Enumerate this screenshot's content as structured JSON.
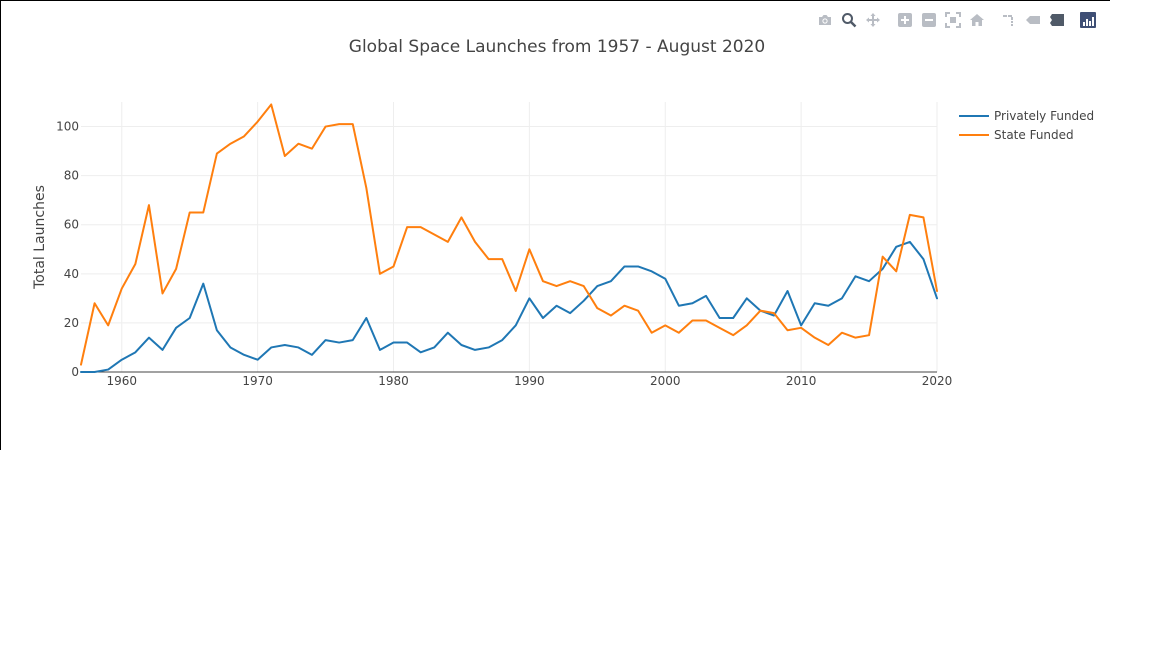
{
  "modebar": {
    "icons": [
      "camera-icon",
      "zoom-icon",
      "pan-icon",
      "zoom-in-icon",
      "zoom-out-icon",
      "autoscale-icon",
      "home-icon",
      "spike-lines-icon",
      "hover-closest-icon",
      "hover-compare-icon",
      "plotly-logo-icon"
    ]
  },
  "chart_data": {
    "type": "line",
    "title": "Global Space Launches from 1957 - August 2020",
    "xlabel": "",
    "ylabel": "Total Launches",
    "xlim": [
      1957,
      2020
    ],
    "ylim": [
      0,
      110
    ],
    "x_ticks": [
      1960,
      1970,
      1980,
      1990,
      2000,
      2010,
      2020
    ],
    "y_ticks": [
      0,
      20,
      40,
      60,
      80,
      100
    ],
    "grid": true,
    "legend_position": "top-right",
    "x": [
      1957,
      1958,
      1959,
      1960,
      1961,
      1962,
      1963,
      1964,
      1965,
      1966,
      1967,
      1968,
      1969,
      1970,
      1971,
      1972,
      1973,
      1974,
      1975,
      1976,
      1977,
      1978,
      1979,
      1980,
      1981,
      1982,
      1983,
      1984,
      1985,
      1986,
      1987,
      1988,
      1989,
      1990,
      1991,
      1992,
      1993,
      1994,
      1995,
      1996,
      1997,
      1998,
      1999,
      2000,
      2001,
      2002,
      2003,
      2004,
      2005,
      2006,
      2007,
      2008,
      2009,
      2010,
      2011,
      2012,
      2013,
      2014,
      2015,
      2016,
      2017,
      2018,
      2019,
      2020
    ],
    "series": [
      {
        "name": "Privately Funded",
        "color": "#1f77b4",
        "values": [
          0,
          0,
          1,
          5,
          8,
          14,
          9,
          18,
          22,
          36,
          17,
          10,
          7,
          5,
          10,
          11,
          10,
          7,
          13,
          12,
          13,
          22,
          9,
          12,
          12,
          8,
          10,
          16,
          11,
          9,
          10,
          13,
          19,
          30,
          22,
          27,
          24,
          29,
          35,
          37,
          43,
          43,
          41,
          38,
          27,
          28,
          31,
          22,
          22,
          30,
          25,
          23,
          33,
          19,
          28,
          27,
          30,
          39,
          37,
          42,
          51,
          53,
          46,
          30
        ]
      },
      {
        "name": "State Funded",
        "color": "#ff7f0e",
        "values": [
          3,
          28,
          19,
          34,
          44,
          68,
          32,
          42,
          65,
          65,
          89,
          93,
          96,
          102,
          109,
          88,
          93,
          91,
          100,
          101,
          101,
          75,
          40,
          43,
          59,
          59,
          56,
          53,
          63,
          53,
          46,
          46,
          33,
          50,
          37,
          35,
          37,
          35,
          26,
          23,
          27,
          25,
          16,
          19,
          16,
          21,
          21,
          18,
          15,
          19,
          25,
          24,
          17,
          18,
          14,
          11,
          16,
          14,
          15,
          47,
          41,
          64,
          63,
          33
        ]
      }
    ]
  }
}
